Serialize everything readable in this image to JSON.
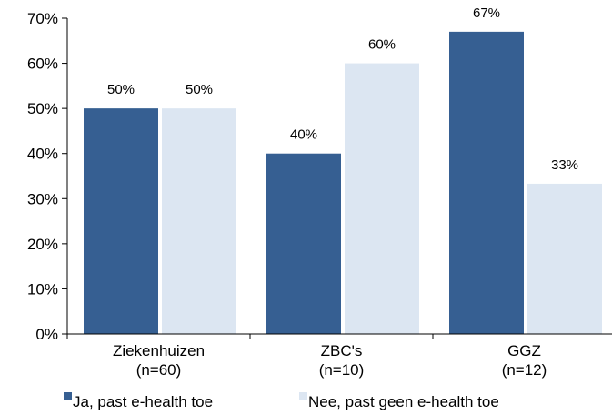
{
  "chart_data": {
    "type": "bar",
    "title": "",
    "xlabel": "",
    "ylabel": "",
    "ylim": [
      0,
      70
    ],
    "yticks": [
      "0%",
      "10%",
      "20%",
      "30%",
      "40%",
      "50%",
      "60%",
      "70%"
    ],
    "ytick_values": [
      0,
      10,
      20,
      30,
      40,
      50,
      60,
      70
    ],
    "grid": false,
    "legend_position": "bottom",
    "categories": [
      {
        "line1": "Ziekenhuizen",
        "line2": "(n=60)"
      },
      {
        "line1": "ZBC's",
        "line2": "(n=10)"
      },
      {
        "line1": "GGZ",
        "line2": "(n=12)"
      }
    ],
    "series": [
      {
        "name": "Ja, past e-health toe",
        "color": "#365f92",
        "values": [
          50,
          40,
          67
        ],
        "labels": [
          "50%",
          "40%",
          "67%"
        ]
      },
      {
        "name": "Nee, past geen e-health toe",
        "color": "#dce6f2",
        "values": [
          50,
          60,
          33.3
        ],
        "labels": [
          "50%",
          "60%",
          "33%"
        ]
      }
    ]
  }
}
